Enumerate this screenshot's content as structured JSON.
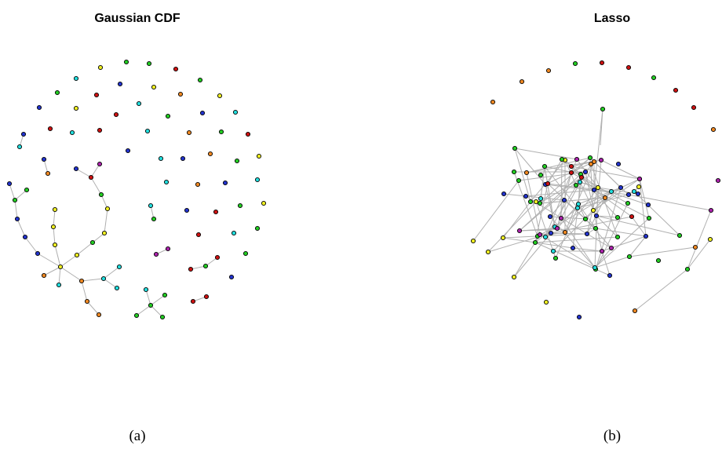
{
  "panels": [
    {
      "title": "Gaussian CDF",
      "caption": "(a)"
    },
    {
      "title": "Lasso",
      "caption": "(b)"
    }
  ]
}
